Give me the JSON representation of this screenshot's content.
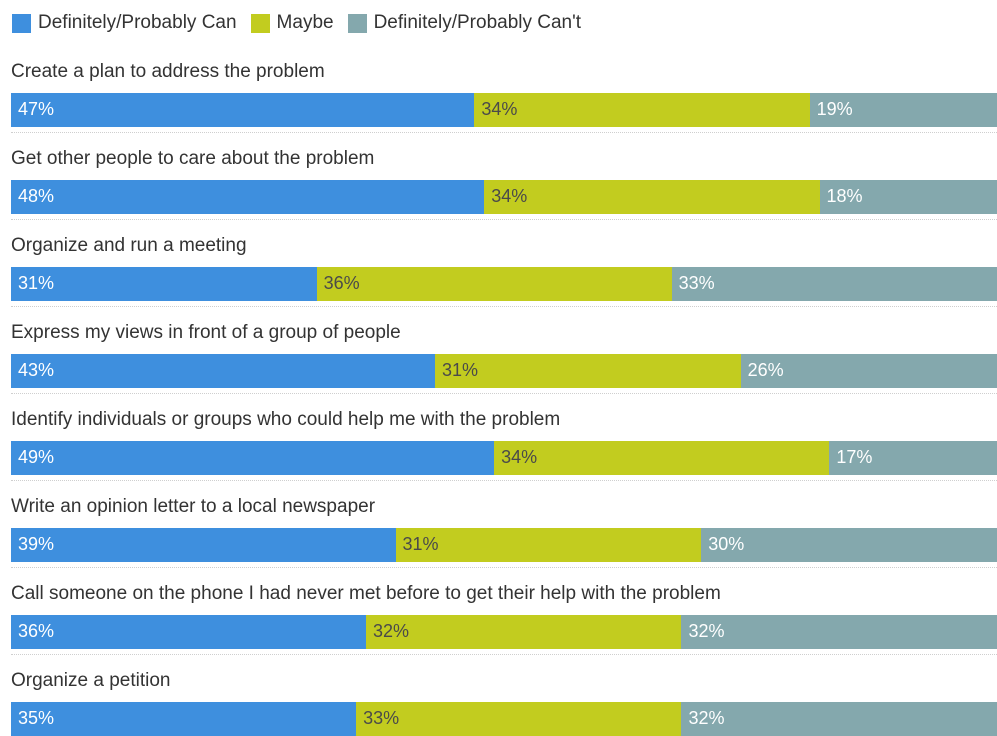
{
  "chart_data": {
    "type": "bar",
    "orientation": "horizontal",
    "stacked": true,
    "percent_scale": true,
    "legend_position": "top-left",
    "grid": false,
    "xlim": [
      0,
      100
    ],
    "categories": [
      "Create a plan to address the problem",
      "Get other people to care about the problem",
      "Organize and run a meeting",
      "Express my views in front of a group of people",
      "Identify individuals or groups who could help me with the problem",
      "Write an opinion letter to a local newspaper",
      "Call someone on the phone I had never met before to get their help with the problem",
      "Organize a petition"
    ],
    "series": [
      {
        "name": "Definitely/Probably Can",
        "color": "#3e8fde",
        "values": [
          47,
          48,
          31,
          43,
          49,
          39,
          36,
          35
        ]
      },
      {
        "name": "Maybe",
        "color": "#c2cc1f",
        "values": [
          34,
          34,
          36,
          31,
          34,
          31,
          32,
          33
        ]
      },
      {
        "name": "Definitely/Probably Can't",
        "color": "#84a8ad",
        "values": [
          19,
          18,
          33,
          26,
          17,
          30,
          32,
          32
        ]
      }
    ],
    "value_labels": [
      [
        "47%",
        "34%",
        "19%"
      ],
      [
        "48%",
        "34%",
        "18%"
      ],
      [
        "31%",
        "36%",
        "33%"
      ],
      [
        "43%",
        "31%",
        "26%"
      ],
      [
        "49%",
        "34%",
        "17%"
      ],
      [
        "39%",
        "31%",
        "30%"
      ],
      [
        "36%",
        "32%",
        "32%"
      ],
      [
        "35%",
        "33%",
        "32%"
      ]
    ]
  }
}
